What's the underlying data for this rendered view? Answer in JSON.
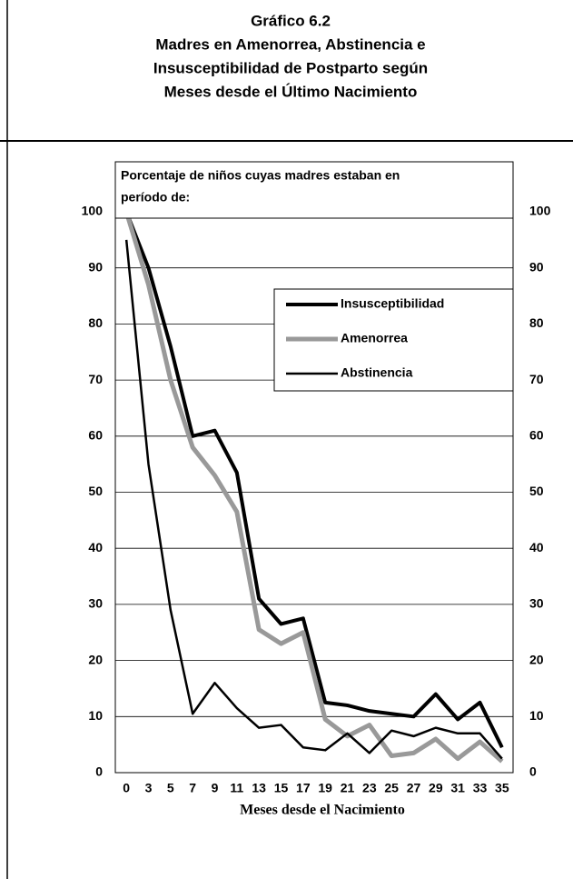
{
  "chart_data": {
    "type": "line",
    "title": [
      "Gráfico 6.2",
      "Madres en Amenorrea, Abstinencia e",
      "Insusceptibilidad de Postparto según",
      "Meses desde el Último Nacimiento"
    ],
    "annotation": [
      "Porcentaje de niños cuyas madres estaban en",
      "período de:"
    ],
    "x_label": "Meses desde el Nacimiento",
    "categories": [
      "0",
      "3",
      "5",
      "7",
      "9",
      "11",
      "13",
      "15",
      "17",
      "19",
      "21",
      "23",
      "25",
      "27",
      "29",
      "31",
      "33",
      "35"
    ],
    "series": [
      {
        "name": "Insusceptibilidad",
        "color": "#000000",
        "values": [
          100,
          90,
          76,
          60,
          61,
          53.5,
          31,
          26.5,
          27.5,
          12.5,
          12,
          11,
          10.5,
          10,
          14,
          9.5,
          12.5,
          4.5
        ]
      },
      {
        "name": "Amenorrea",
        "color": "#999999",
        "values": [
          100,
          87,
          70,
          58,
          53,
          46.5,
          25.5,
          23,
          25,
          9.5,
          6.5,
          8.5,
          3,
          3.5,
          6,
          2.5,
          5.5,
          2
        ]
      },
      {
        "name": "Abstinencia",
        "color": "#000000",
        "values": [
          95,
          55,
          29,
          10.5,
          16,
          11.5,
          8,
          8.5,
          4.5,
          4,
          7,
          3.5,
          7.5,
          6.5,
          8,
          7,
          7,
          2.5
        ]
      }
    ],
    "ylim": [
      0,
      100
    ],
    "yticks": [
      0,
      10,
      20,
      30,
      40,
      50,
      60,
      70,
      80,
      90,
      100
    ],
    "grid": true
  }
}
